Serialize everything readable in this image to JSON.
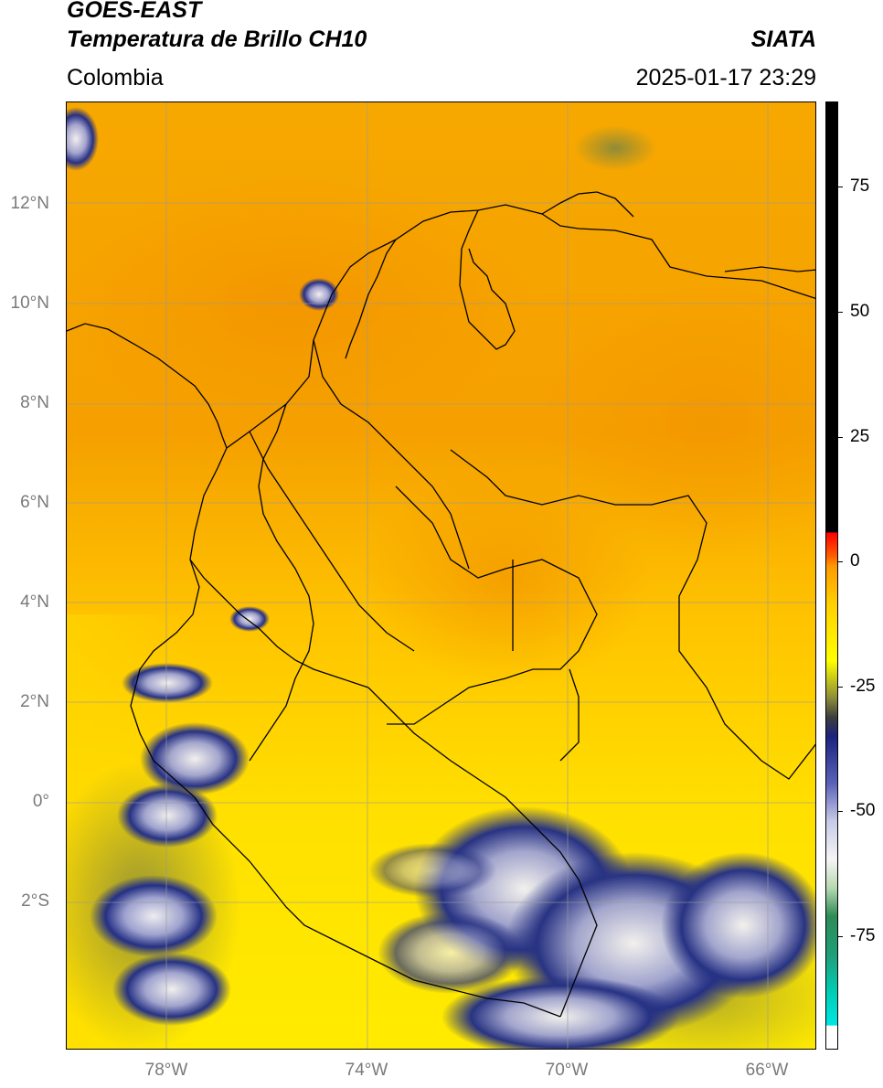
{
  "header": {
    "satellite": "GOES-EAST",
    "product": "Temperatura de Brillo CH10",
    "region": "Colombia",
    "org": "SIATA",
    "timestamp": "2025-01-17 23:29"
  },
  "map": {
    "lat_labels": [
      "12°N",
      "10°N",
      "8°N",
      "6°N",
      "4°N",
      "2°N",
      "0°",
      "2°S"
    ],
    "lon_labels": [
      "78°W",
      "74°W",
      "70°W",
      "66°W"
    ],
    "gridlines": true,
    "colors": {
      "background_orange": "#f5a100",
      "background_yellow": "#ffe800",
      "cloud_blue": "#1a237e",
      "cloud_white": "#e8eaf6",
      "border": "#000000"
    }
  },
  "colorbar": {
    "ticks": [
      "75",
      "50",
      "25",
      "0",
      "-25",
      "-50",
      "-75"
    ],
    "tick_values": [
      75,
      50,
      25,
      0,
      -25,
      -50,
      -75
    ],
    "range": [
      -95,
      90
    ],
    "colors": [
      "#ffffff",
      "#00e5e5",
      "#2e8b57",
      "#f5f5f5",
      "#1a237e",
      "#ffff00",
      "#ff9900",
      "#ff0000",
      "#000000"
    ]
  }
}
